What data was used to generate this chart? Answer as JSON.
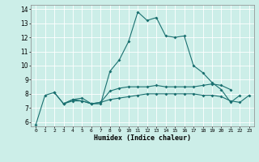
{
  "title": "",
  "xlabel": "Humidex (Indice chaleur)",
  "ylabel": "",
  "xlim": [
    -0.5,
    23.5
  ],
  "ylim": [
    5.7,
    14.3
  ],
  "xticks": [
    0,
    1,
    2,
    3,
    4,
    5,
    6,
    7,
    8,
    9,
    10,
    11,
    12,
    13,
    14,
    15,
    16,
    17,
    18,
    19,
    20,
    21,
    22,
    23
  ],
  "yticks": [
    6,
    7,
    8,
    9,
    10,
    11,
    12,
    13,
    14
  ],
  "bg_color": "#cceee8",
  "line_color": "#1a7070",
  "grid_color": "#ffffff",
  "line1_x": [
    0,
    1,
    2,
    3,
    4,
    5,
    6,
    7,
    8,
    9,
    10,
    11,
    12,
    13,
    14,
    15,
    16,
    17,
    18,
    19,
    20,
    21,
    22
  ],
  "line1_y": [
    5.8,
    7.9,
    8.1,
    7.3,
    7.6,
    7.7,
    7.3,
    7.3,
    9.6,
    10.4,
    11.7,
    13.8,
    13.2,
    13.4,
    12.1,
    12.0,
    12.1,
    10.0,
    9.5,
    8.8,
    8.3,
    7.4,
    7.9
  ],
  "line2_x": [
    2,
    3,
    4,
    5,
    6,
    7,
    8,
    9,
    10,
    11,
    12,
    13,
    14,
    15,
    16,
    17,
    18,
    19,
    20,
    21
  ],
  "line2_y": [
    8.1,
    7.3,
    7.6,
    7.5,
    7.3,
    7.4,
    8.2,
    8.4,
    8.5,
    8.5,
    8.5,
    8.6,
    8.5,
    8.5,
    8.5,
    8.5,
    8.6,
    8.7,
    8.6,
    8.3
  ],
  "line3_x": [
    3,
    4,
    5,
    6,
    7,
    8,
    9,
    10,
    11,
    12,
    13,
    14,
    15,
    16,
    17,
    18,
    19,
    20,
    21,
    22,
    23
  ],
  "line3_y": [
    7.3,
    7.5,
    7.5,
    7.3,
    7.4,
    7.6,
    7.7,
    7.8,
    7.9,
    8.0,
    8.0,
    8.0,
    8.0,
    8.0,
    8.0,
    7.9,
    7.9,
    7.8,
    7.5,
    7.4,
    7.9
  ]
}
